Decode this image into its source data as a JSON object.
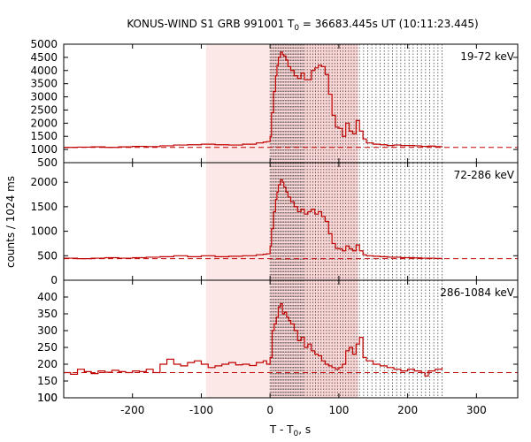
{
  "chart_data": {
    "type": "line",
    "title": "KONUS-WIND S1 GRB 991001 T",
    "title_sub": "0",
    "title_rest": " = 36683.445s UT (10:11:23.445)",
    "xlabel": "T - T",
    "xlabel_sub": "0",
    "xlabel_rest": ", s",
    "ylabel": "counts / 1024 ms",
    "xlim": [
      -300,
      360
    ],
    "xticks": [
      -200,
      -100,
      0,
      100,
      200,
      300
    ],
    "xtick_labels": [
      "-200",
      "-100",
      "0",
      "100",
      "200",
      "300"
    ],
    "shaded_region": [
      -93,
      128
    ],
    "shaded_region_dark": [
      0,
      128
    ],
    "dotted_time_marks": [
      0,
      2,
      4,
      6,
      8,
      10,
      12,
      14,
      16,
      18,
      20,
      22,
      24,
      26,
      28,
      30,
      32,
      34,
      36,
      38,
      40,
      42,
      44,
      46,
      48,
      50,
      54,
      58,
      62,
      66,
      70,
      74,
      78,
      82,
      86,
      90,
      94,
      98,
      102,
      106,
      110,
      114,
      118,
      122,
      126,
      130,
      136,
      142,
      148,
      154,
      160,
      166,
      172,
      178,
      184,
      190,
      196,
      202,
      208,
      214,
      220,
      226,
      232,
      238,
      244,
      250
    ],
    "colors": {
      "curve": "#c00000",
      "shade": "#fde8e8",
      "shade_dark": "#fad5d5",
      "marks": "#444444"
    },
    "panels": [
      {
        "band": "19-72 keV",
        "ylim": [
          500,
          5000
        ],
        "yticks": [
          1000,
          1500,
          2000,
          2500,
          3000,
          3500,
          4000,
          4500,
          5000
        ],
        "ytick_labels": [
          "1000",
          "1500",
          "2000",
          "2500",
          "3000",
          "3500",
          "4000",
          "4500",
          "5000"
        ],
        "bottom_tick_label": "500",
        "background": 1080,
        "series": {
          "x": [
            -300,
            -280,
            -260,
            -240,
            -220,
            -200,
            -180,
            -160,
            -140,
            -120,
            -100,
            -80,
            -60,
            -40,
            -20,
            -10,
            -5,
            0,
            2,
            5,
            8,
            10,
            12,
            15,
            18,
            20,
            23,
            26,
            30,
            35,
            40,
            45,
            50,
            55,
            60,
            65,
            70,
            75,
            80,
            85,
            90,
            95,
            100,
            105,
            110,
            115,
            120,
            125,
            130,
            135,
            140,
            150,
            160,
            170,
            180,
            190,
            200,
            210,
            220,
            230,
            240,
            250
          ],
          "y": [
            1080,
            1090,
            1100,
            1080,
            1100,
            1120,
            1110,
            1140,
            1170,
            1180,
            1200,
            1180,
            1170,
            1200,
            1250,
            1280,
            1300,
            1500,
            2400,
            3200,
            3800,
            4200,
            4500,
            4700,
            4600,
            4550,
            4400,
            4150,
            4000,
            3800,
            3700,
            3900,
            3650,
            3650,
            4000,
            4100,
            4200,
            4150,
            3850,
            3100,
            2300,
            1850,
            1800,
            1500,
            2000,
            1700,
            1600,
            2100,
            1700,
            1400,
            1250,
            1200,
            1180,
            1150,
            1170,
            1150,
            1150,
            1140,
            1120,
            1130,
            1110,
            1100
          ]
        }
      },
      {
        "band": "72-286 keV",
        "ylim": [
          0,
          2400
        ],
        "yticks": [
          500,
          1000,
          1500,
          2000
        ],
        "ytick_labels": [
          "500",
          "1000",
          "1500",
          "2000"
        ],
        "bottom_tick_label": "0",
        "background": 440,
        "series": {
          "x": [
            -300,
            -280,
            -260,
            -240,
            -220,
            -200,
            -180,
            -160,
            -140,
            -120,
            -100,
            -80,
            -60,
            -40,
            -20,
            -10,
            -5,
            0,
            2,
            5,
            8,
            10,
            12,
            15,
            18,
            20,
            23,
            26,
            30,
            35,
            40,
            45,
            50,
            55,
            60,
            65,
            70,
            75,
            80,
            85,
            90,
            95,
            100,
            105,
            110,
            115,
            120,
            125,
            130,
            135,
            140,
            150,
            160,
            170,
            180,
            190,
            200,
            210,
            220,
            230,
            240,
            250
          ],
          "y": [
            450,
            440,
            450,
            460,
            450,
            460,
            470,
            480,
            500,
            480,
            500,
            480,
            490,
            500,
            520,
            530,
            540,
            700,
            1050,
            1400,
            1650,
            1800,
            1950,
            2050,
            2000,
            1900,
            1800,
            1700,
            1600,
            1500,
            1400,
            1450,
            1350,
            1400,
            1450,
            1350,
            1400,
            1300,
            1200,
            950,
            750,
            650,
            640,
            600,
            700,
            640,
            600,
            720,
            600,
            520,
            500,
            490,
            480,
            470,
            470,
            460,
            460,
            455,
            450,
            450,
            445,
            440
          ]
        }
      },
      {
        "band": "286-1084 keV",
        "ylim": [
          100,
          450
        ],
        "yticks": [
          100,
          150,
          200,
          250,
          300,
          350,
          400
        ],
        "ytick_labels": [
          "100",
          "150",
          "200",
          "250",
          "300",
          "350",
          "400"
        ],
        "bottom_tick_label": "100",
        "background": 175,
        "series": {
          "x": [
            -300,
            -290,
            -280,
            -270,
            -260,
            -250,
            -240,
            -230,
            -220,
            -210,
            -200,
            -190,
            -180,
            -170,
            -160,
            -150,
            -140,
            -130,
            -120,
            -110,
            -100,
            -90,
            -80,
            -70,
            -60,
            -50,
            -40,
            -30,
            -20,
            -10,
            -5,
            0,
            3,
            6,
            9,
            12,
            15,
            18,
            21,
            24,
            27,
            30,
            35,
            40,
            45,
            50,
            55,
            60,
            65,
            70,
            75,
            80,
            85,
            90,
            95,
            100,
            105,
            110,
            115,
            120,
            125,
            130,
            135,
            140,
            150,
            160,
            170,
            180,
            190,
            200,
            210,
            220,
            225,
            230,
            240,
            250
          ],
          "y": [
            175,
            170,
            185,
            178,
            172,
            180,
            176,
            182,
            178,
            175,
            180,
            178,
            185,
            175,
            200,
            215,
            200,
            195,
            205,
            210,
            200,
            190,
            195,
            200,
            205,
            198,
            200,
            196,
            205,
            210,
            200,
            220,
            300,
            320,
            340,
            370,
            380,
            350,
            355,
            340,
            330,
            320,
            300,
            270,
            280,
            250,
            260,
            240,
            230,
            225,
            210,
            200,
            195,
            190,
            185,
            190,
            200,
            240,
            250,
            230,
            260,
            280,
            220,
            210,
            200,
            195,
            190,
            185,
            180,
            185,
            180,
            175,
            165,
            180,
            185,
            190
          ]
        }
      }
    ]
  }
}
